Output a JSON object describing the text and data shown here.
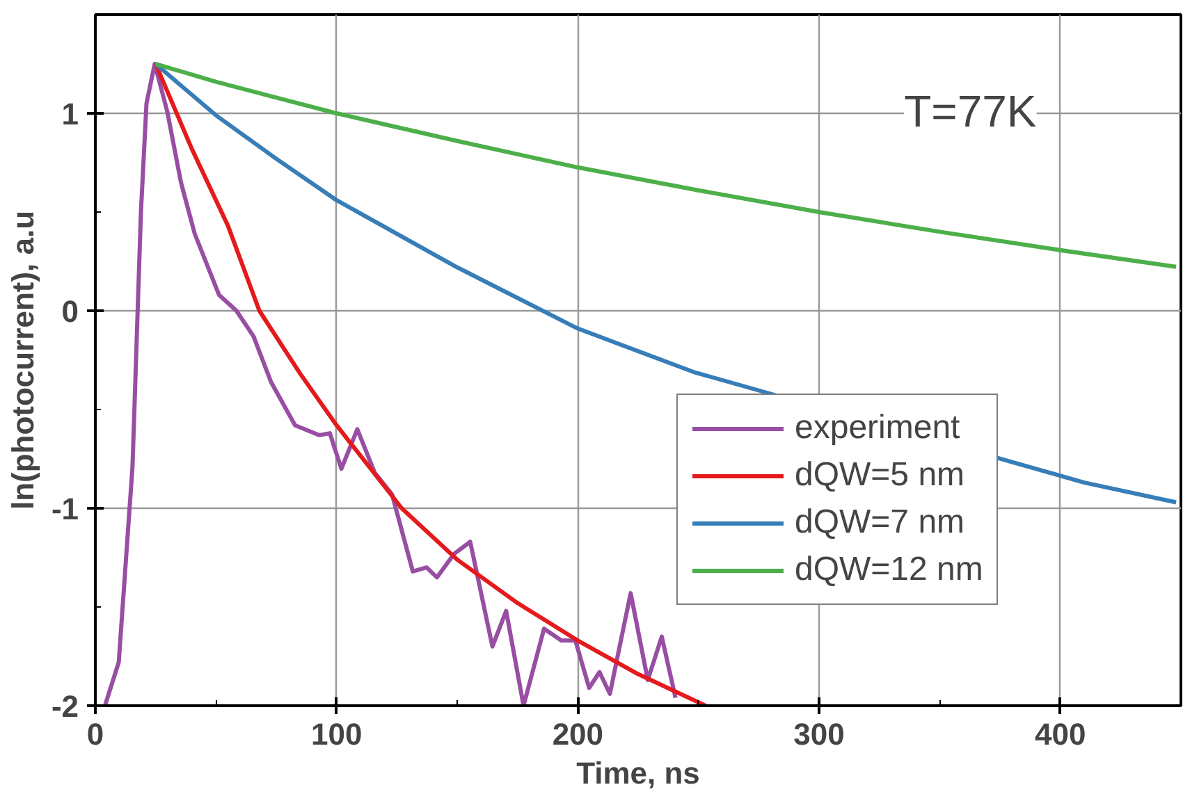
{
  "chart_data": {
    "type": "line",
    "xlabel": "Time, ns",
    "ylabel": "ln(photocurrent), a.u",
    "xlim": [
      0,
      450
    ],
    "ylim": [
      -2,
      1.5
    ],
    "xticks": [
      0,
      100,
      200,
      300,
      400
    ],
    "yticks": [
      -2,
      -1,
      0,
      1
    ],
    "grid": true,
    "legend": "right",
    "line_style": "solid",
    "marker": "none",
    "annotations": [
      "T=77K"
    ],
    "series": [
      {
        "name": "experiment",
        "color": "#984ea3",
        "x": [
          4,
          9.7,
          15.4,
          18.9,
          21.2,
          24.6,
          29.8,
          35.5,
          41.2,
          51.3,
          58.5,
          65.6,
          72.8,
          82.8,
          92.9,
          97.2,
          102,
          108.6,
          115.8,
          123,
          131.6,
          137.3,
          141.6,
          148.8,
          155.4,
          164.6,
          170.3,
          177.5,
          186,
          193.2,
          199,
          204.7,
          209,
          213.3,
          221.9,
          229,
          234.8,
          240.5
        ],
        "values": [
          -2.0,
          -1.78,
          -0.79,
          0.5,
          1.05,
          1.25,
          1.01,
          0.65,
          0.39,
          0.08,
          0.0,
          -0.13,
          -0.36,
          -0.58,
          -0.63,
          -0.62,
          -0.8,
          -0.6,
          -0.82,
          -0.93,
          -1.32,
          -1.3,
          -1.35,
          -1.23,
          -1.17,
          -1.7,
          -1.52,
          -2.0,
          -1.61,
          -1.67,
          -1.67,
          -1.91,
          -1.83,
          -1.94,
          -1.43,
          -1.87,
          -1.65,
          -1.96
        ]
      },
      {
        "name": "dQW=5 nm",
        "color": "#e41a1c",
        "x": [
          25,
          40,
          55,
          68,
          85,
          100,
          127,
          150,
          175,
          200,
          225,
          253
        ],
        "values": [
          1.25,
          0.82,
          0.43,
          0.0,
          -0.32,
          -0.58,
          -1.0,
          -1.26,
          -1.48,
          -1.67,
          -1.84,
          -2.0
        ]
      },
      {
        "name": "dQW=7 nm",
        "color": "#377eb8",
        "x": [
          25,
          50,
          75,
          100,
          150,
          200,
          248,
          410,
          448
        ],
        "values": [
          1.25,
          0.99,
          0.77,
          0.56,
          0.22,
          -0.09,
          -0.31,
          -0.87,
          -0.97
        ]
      },
      {
        "name": "dQW=12 nm",
        "color": "#4daf4a",
        "x": [
          25,
          50,
          75,
          100,
          150,
          200,
          250,
          300,
          350,
          400,
          448
        ],
        "values": [
          1.25,
          1.16,
          1.08,
          1.0,
          0.86,
          0.726,
          0.61,
          0.5,
          0.4,
          0.307,
          0.223
        ]
      }
    ]
  }
}
